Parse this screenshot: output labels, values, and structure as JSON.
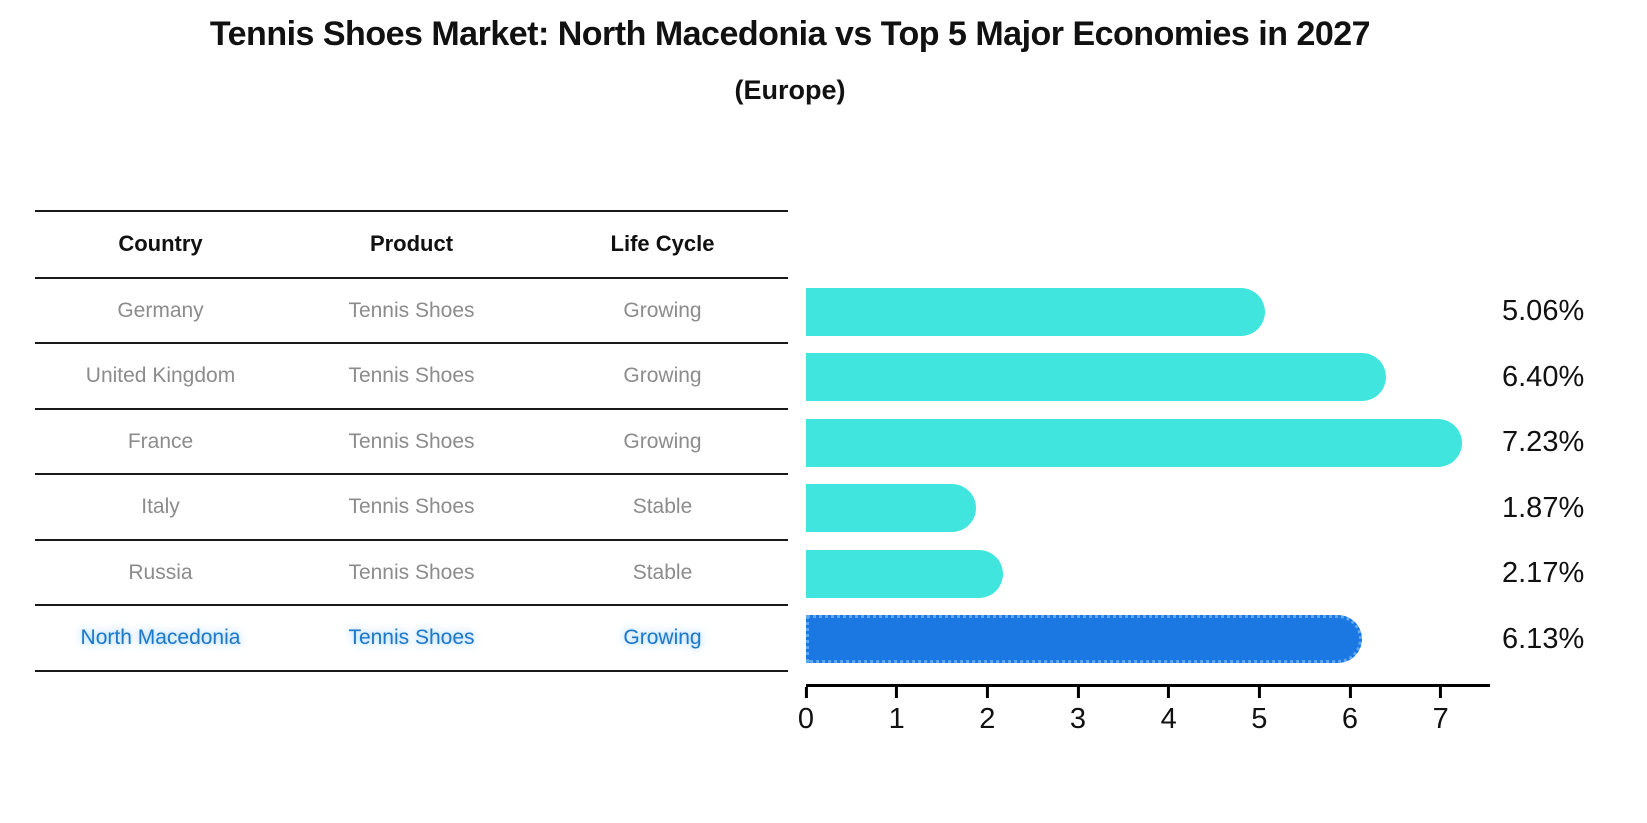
{
  "title": "Tennis Shoes Market: North Macedonia vs Top 5 Major Economies in 2027",
  "subtitle": "(Europe)",
  "table": {
    "columns": [
      "Country",
      "Product",
      "Life Cycle"
    ],
    "rows": [
      {
        "country": "Germany",
        "product": "Tennis Shoes",
        "life_cycle": "Growing"
      },
      {
        "country": "United Kingdom",
        "product": "Tennis Shoes",
        "life_cycle": "Growing"
      },
      {
        "country": "France",
        "product": "Tennis Shoes",
        "life_cycle": "Growing"
      },
      {
        "country": "Italy",
        "product": "Tennis Shoes",
        "life_cycle": "Stable"
      },
      {
        "country": "Russia",
        "product": "Tennis Shoes",
        "life_cycle": "Stable"
      },
      {
        "country": "North Macedonia",
        "product": "Tennis Shoes",
        "life_cycle": "Growing"
      }
    ],
    "highlighted_row": "North Macedonia"
  },
  "chart_data": {
    "type": "bar",
    "orientation": "horizontal",
    "title": "Tennis Shoes Market: North Macedonia vs Top 5 Major Economies in 2027",
    "subtitle": "(Europe)",
    "categories": [
      "Germany",
      "United Kingdom",
      "France",
      "Italy",
      "Russia",
      "North Macedonia"
    ],
    "values": [
      5.06,
      6.4,
      7.23,
      1.87,
      2.17,
      6.13
    ],
    "value_labels": [
      "5.06%",
      "6.40%",
      "7.23%",
      "1.87%",
      "2.17%",
      "6.13%"
    ],
    "unit": "%",
    "xlim": [
      0,
      7.5
    ],
    "x_ticks": [
      "0",
      "1",
      "2",
      "3",
      "4",
      "5",
      "6",
      "7"
    ],
    "grid": false,
    "legend": "none",
    "highlight_index": 5,
    "colors": {
      "bar": "#40E6DE",
      "highlight_bar": "#1B78E3",
      "highlight_bar_border": "#5FA8EF",
      "highlight_text": "#1F78C8",
      "row_text": "#8C8C8C",
      "header_text": "#111111",
      "axis": "#000000"
    }
  }
}
